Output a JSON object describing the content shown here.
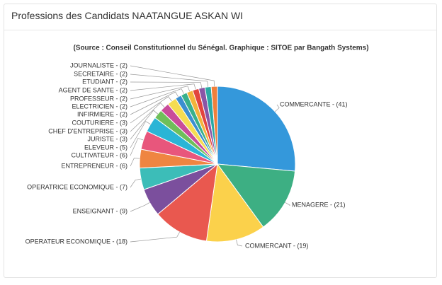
{
  "header": {
    "title": "Professions des Candidats NAATANGUE ASKAN WI"
  },
  "chart_data": {
    "type": "pie",
    "subtitle": "(Source : Conseil Constitutionnel du Sénégal. Graphique : SITOE par Bangath Systems)",
    "categories": [
      "COMMERCANTE",
      "MENAGERE",
      "COMMERCANT",
      "OPERATEUR ECONOMIQUE",
      "ENSEIGNANT",
      "OPERATRICE ECONOMIQUE",
      "ENTREPRENEUR",
      "CULTIVATEUR",
      "ELEVEUR",
      "JURISTE",
      "CHEF D'ENTREPRISE",
      "COUTURIERE",
      "INFIRMIERE",
      "ELECTRICIEN",
      "PROFESSEUR",
      "AGENT DE SANTE",
      "ETUDIANT",
      "SECRETAIRE",
      "JOURNALISTE"
    ],
    "values": [
      41,
      21,
      19,
      18,
      9,
      7,
      6,
      6,
      5,
      3,
      3,
      3,
      2,
      2,
      2,
      2,
      2,
      2,
      2
    ],
    "value_labels": [
      "COMMERCANTE - (41)",
      "MENAGERE - (21)",
      "COMMERCANT - (19)",
      "OPERATEUR ECONOMIQUE - (18)",
      "ENSEIGNANT - (9)",
      "OPERATRICE ECONOMIQUE - (7)",
      "ENTREPRENEUR - (6)",
      "CULTIVATEUR - (6)",
      "ELEVEUR - (5)",
      "JURISTE - (3)",
      "CHEF D'ENTREPRISE - (3)",
      "COUTURIERE - (3)",
      "INFIRMIERE - (2)",
      "ELECTRICIEN - (2)",
      "PROFESSEUR - (2)",
      "AGENT DE SANTE - (2)",
      "ETUDIANT - (2)",
      "SECRETAIRE - (2)",
      "JOURNALISTE - (2)"
    ],
    "colors": [
      "#3498db",
      "#3daf83",
      "#fbd14b",
      "#e9584f",
      "#7b4f9d",
      "#3cbdb8",
      "#ef8541",
      "#e8567c",
      "#2ab5d6",
      "#6ebf5a",
      "#c94c9a",
      "#f5dc52",
      "#3b8fd0",
      "#38b08b",
      "#f3b33b",
      "#e2443e",
      "#8a55a6",
      "#2aa9a4",
      "#f07f3a"
    ]
  }
}
